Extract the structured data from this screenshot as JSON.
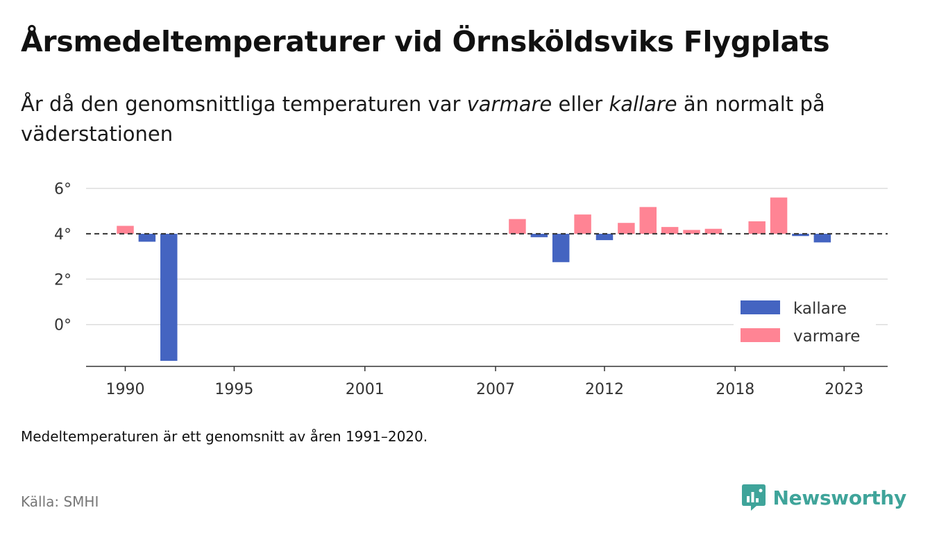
{
  "header": {
    "title": "Årsmedeltemperaturer vid Örnsköldsviks Flygplats",
    "subtitle_parts": [
      "År då den genomsnittliga temperaturen var ",
      "varmare",
      " eller ",
      "kallare",
      " än normalt på väderstationen"
    ]
  },
  "footer": {
    "note": "Medeltemperaturen är ett genomsnitt av åren 1991–2020.",
    "source": "Källa: SMHI",
    "brand": "Newsworthy"
  },
  "colors": {
    "kallare": "#4464c1",
    "varmare": "#ff8494",
    "brand": "#3fa49a"
  },
  "chart_data": {
    "type": "bar",
    "baseline": 4,
    "ylim": [
      -1.6,
      6.2
    ],
    "xlim": [
      1988.2,
      2025
    ],
    "y_ticks": [
      0,
      2,
      4,
      6
    ],
    "y_tick_labels": [
      "0°",
      "2°",
      "4°",
      "6°"
    ],
    "x_ticks": [
      1990,
      1995,
      2001,
      2007,
      2012,
      2018,
      2023
    ],
    "x_tick_labels": [
      "1990",
      "1995",
      "2001",
      "2007",
      "2012",
      "2018",
      "2023"
    ],
    "grid": true,
    "legend_position": "bottom-right",
    "series": [
      {
        "name": "kallare",
        "x": [
          1991,
          1992,
          2009,
          2010,
          2012,
          2021,
          2022
        ],
        "values": [
          3.65,
          -1.6,
          3.85,
          2.75,
          3.72,
          3.9,
          3.62
        ]
      },
      {
        "name": "varmare",
        "x": [
          1990,
          2008,
          2011,
          2013,
          2014,
          2015,
          2016,
          2019,
          2020
        ],
        "values": [
          4.35,
          4.65,
          4.85,
          4.48,
          5.18,
          4.3,
          4.17,
          4.55,
          5.6
        ]
      },
      {
        "name": "",
        "x": [
          2017
        ],
        "values": [
          4.22
        ]
      }
    ]
  }
}
